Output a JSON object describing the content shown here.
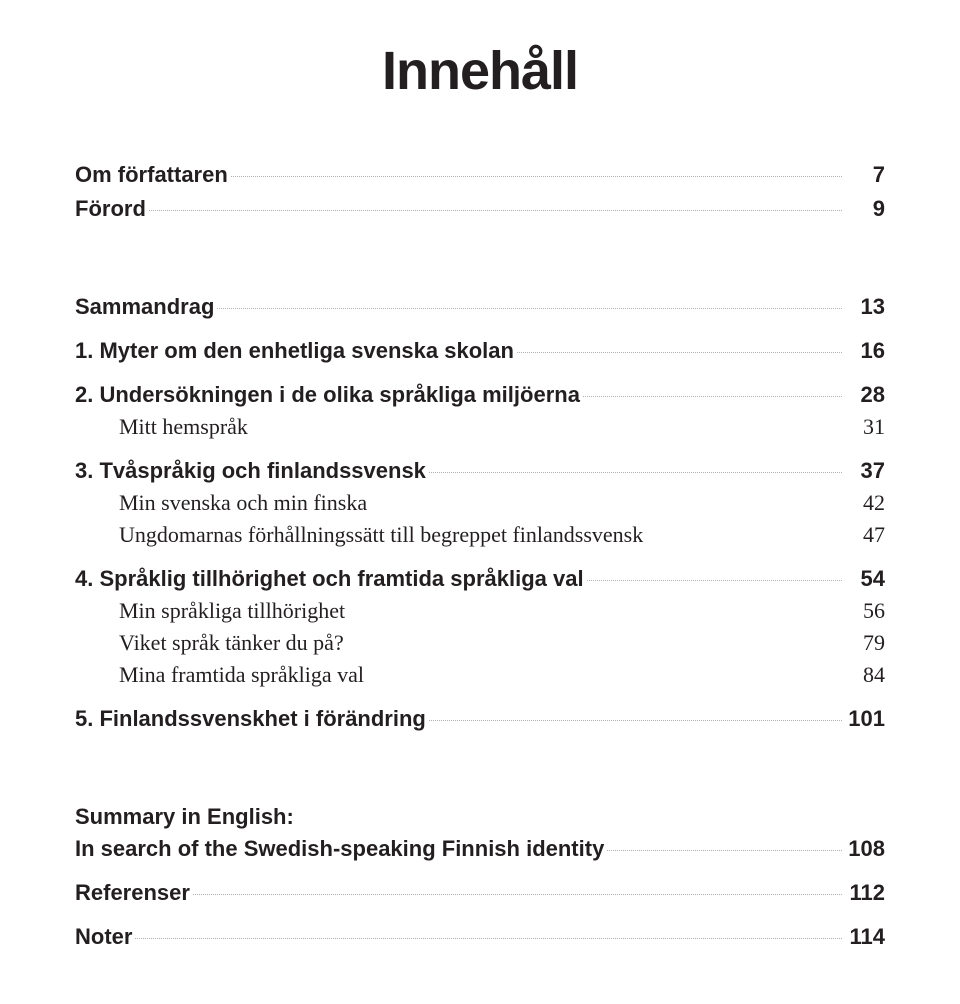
{
  "title": "Innehåll",
  "entries": [
    {
      "kind": "bold",
      "label": "Om författaren",
      "page": "7",
      "leader": true,
      "gap": ""
    },
    {
      "kind": "bold",
      "label": "Förord",
      "page": "9",
      "leader": true,
      "gap": "group-gap-small"
    },
    {
      "kind": "bold",
      "label": "Sammandrag",
      "page": "13",
      "leader": true,
      "gap": "group-gap-large"
    },
    {
      "kind": "bold",
      "label": "1. Myter om den enhetliga svenska skolan",
      "page": "16",
      "leader": true,
      "gap": "group-gap"
    },
    {
      "kind": "bold",
      "label": "2. Undersökningen i de olika språkliga miljöerna",
      "page": "28",
      "leader": true,
      "gap": "group-gap"
    },
    {
      "kind": "sub",
      "label": "Mitt hemspråk",
      "page": "31",
      "leader": false,
      "gap": ""
    },
    {
      "kind": "bold",
      "label": "3. Tvåspråkig och finlandssvensk",
      "page": "37",
      "leader": true,
      "gap": "group-gap"
    },
    {
      "kind": "sub",
      "label": "Min svenska och min finska",
      "page": "42",
      "leader": false,
      "gap": ""
    },
    {
      "kind": "sub",
      "label": "Ungdomarnas förhållningssätt till begreppet finlandssvensk",
      "page": "47",
      "leader": false,
      "gap": ""
    },
    {
      "kind": "bold",
      "label": "4. Språklig tillhörighet och framtida språkliga val",
      "page": "54",
      "leader": true,
      "gap": "group-gap"
    },
    {
      "kind": "sub",
      "label": "Min språkliga tillhörighet",
      "page": "56",
      "leader": false,
      "gap": ""
    },
    {
      "kind": "sub",
      "label": "Viket språk tänker du på?",
      "page": "79",
      "leader": false,
      "gap": ""
    },
    {
      "kind": "sub",
      "label": "Mina framtida språkliga val",
      "page": "84",
      "leader": false,
      "gap": ""
    },
    {
      "kind": "bold",
      "label": "5. Finlandssvenskhet i förändring",
      "page": "101",
      "leader": true,
      "gap": "group-gap"
    },
    {
      "kind": "bold",
      "label": "Summary in English:",
      "page": "",
      "leader": false,
      "gap": "group-gap-large"
    },
    {
      "kind": "bold",
      "label": "In search of the Swedish-speaking Finnish identity",
      "page": "108",
      "leader": true,
      "gap": ""
    },
    {
      "kind": "bold",
      "label": "Referenser",
      "page": "112",
      "leader": true,
      "gap": "group-gap"
    },
    {
      "kind": "bold",
      "label": "Noter",
      "page": "114",
      "leader": true,
      "gap": "group-gap"
    }
  ]
}
